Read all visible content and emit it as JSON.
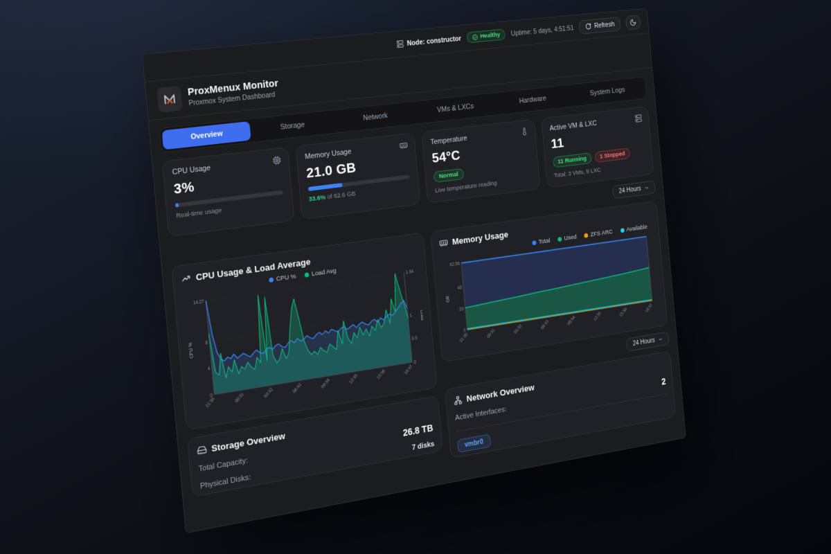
{
  "topbar": {
    "node_label": "Node: constructor",
    "health_label": "Healthy",
    "uptime": "Uptime: 5 days, 4:51:51",
    "refresh_label": "Refresh"
  },
  "header": {
    "title": "ProxMenux Monitor",
    "subtitle": "Proxmox System Dashboard"
  },
  "tabs": {
    "active_index": 0,
    "items": [
      {
        "label": "Overview"
      },
      {
        "label": "Storage"
      },
      {
        "label": "Network"
      },
      {
        "label": "VMs & LXCs"
      },
      {
        "label": "Hardware"
      },
      {
        "label": "System Logs"
      }
    ]
  },
  "stat_cards": {
    "cpu": {
      "label": "CPU Usage",
      "value": "3%",
      "percent": 3,
      "subtitle": "Real-time usage"
    },
    "memory": {
      "label": "Memory Usage",
      "value": "21.0 GB",
      "percent": 33.6,
      "subtitle_highlight": "33.6%",
      "subtitle_rest": " of 62.6 GB"
    },
    "temperature": {
      "label": "Temperature",
      "value": "54°C",
      "badge": "Normal",
      "subtitle": "Live temperature reading"
    },
    "vms": {
      "label": "Active VM & LXC",
      "value": "11",
      "running_badge": "11 Running",
      "stopped_badge": "1 Stopped",
      "subtitle": "Total: 3 VMs, 9 LXC"
    }
  },
  "timeframe": {
    "label": "24 Hours"
  },
  "chart_data": [
    {
      "type": "area",
      "title": "CPU Usage & Load Average",
      "x_ticks": [
        "21:30",
        "00:31",
        "03:32",
        "06:33",
        "09:34",
        "12:35",
        "15:36",
        "18:37"
      ],
      "left_axis": {
        "label": "CPU %",
        "max": 14.27,
        "ticks": [
          14.27,
          8,
          4,
          0
        ]
      },
      "right_axis": {
        "label": "Load",
        "max": 1.94,
        "ticks": [
          1.94,
          1,
          0.5,
          0
        ]
      },
      "legend_position": "center",
      "grid": true,
      "series": [
        {
          "name": "CPU %",
          "axis": "left",
          "color": "#3b82f6",
          "width": 1.4,
          "fill": "axis",
          "fill_color": "rgba(59,130,246,0.18)",
          "values": [
            14.3,
            9,
            6.2,
            5.1,
            4.8,
            5.3,
            5,
            5.6,
            4.9,
            5.2,
            5.5,
            5.1,
            4.8,
            5.3,
            5.7,
            5.2,
            5,
            5.5,
            5.8,
            5.4,
            5.9,
            6.1,
            5.6,
            5.4,
            6,
            6.3,
            5.9,
            6.5,
            6,
            6.2,
            6.7,
            6.3,
            6.1,
            6.6,
            6.9,
            6.5,
            7,
            6.6,
            7.1,
            6.8,
            6.5,
            7,
            7.2,
            6.7,
            7,
            7.3,
            6.8,
            7.2,
            7.5,
            7.1,
            6.9,
            7.4,
            7.6,
            7.1,
            7.7,
            7.3,
            7.8,
            8.1,
            7.8,
            8.3,
            8.8,
            9.4,
            9.9,
            8.6
          ]
        },
        {
          "name": "Load Avg",
          "axis": "right",
          "color": "#10b981",
          "width": 1.2,
          "fill": "axis",
          "fill_color": "rgba(16,185,129,0.3)",
          "values": [
            1.25,
            0.45,
            0.38,
            0.82,
            0.3,
            0.52,
            0.4,
            0.64,
            0.34,
            0.48,
            0.42,
            0.55,
            0.44,
            0.38,
            0.62,
            0.5,
            1.9,
            0.52,
            1.84,
            0.6,
            0.44,
            0.52,
            0.72,
            0.5,
            0.62,
            1.12,
            1.52,
            1.72,
            1.3,
            0.82,
            0.6,
            0.5,
            0.56,
            0.48,
            0.62,
            0.54,
            0.5,
            0.66,
            0.6,
            0.52,
            0.92,
            0.62,
            1.1,
            0.72,
            0.6,
            0.82,
            0.7,
            0.92,
            0.74,
            0.86,
            0.7,
            0.9,
            0.8,
            1.02,
            0.84,
            0.92,
            1.2,
            0.9,
            1.42,
            1.12,
            1.94,
            1.6,
            1.28,
            0.96
          ]
        }
      ]
    },
    {
      "type": "area",
      "title": "Memory Usage",
      "x_ticks": [
        "21:30",
        "00:31",
        "03:32",
        "06:33",
        "09:34",
        "12:35",
        "15:36",
        "18:37"
      ],
      "left_axis": {
        "label": "GB",
        "max": 62.56,
        "ticks": [
          62.56,
          40,
          20,
          0
        ]
      },
      "legend_position": "right",
      "grid": true,
      "series": [
        {
          "name": "Total",
          "axis": "left",
          "color": "#3b82f6",
          "width": 1.8,
          "fill": "Used",
          "fill_color": "rgba(36,48,84,0.88)",
          "values": [
            62.56,
            62.56,
            62.56,
            62.56,
            62.56,
            62.56,
            62.56,
            62.56,
            62.56
          ]
        },
        {
          "name": "Used",
          "axis": "left",
          "color": "#10b981",
          "width": 1.6,
          "fill": "axis",
          "fill_color": "rgba(16,185,129,0.35)",
          "values": [
            20.8,
            22.1,
            23.4,
            24.8,
            26.1,
            27.5,
            28.9,
            30.5,
            32.4
          ]
        },
        {
          "name": "ZFS ARC",
          "axis": "left",
          "color": "#f59e0b",
          "width": 1,
          "values": [
            0.5,
            0.5,
            0.5,
            0.5,
            0.5,
            0.5,
            0.5,
            0.5,
            0.5
          ]
        },
        {
          "name": "Available",
          "axis": "left",
          "color": "#22d3ee",
          "width": 1.3,
          "values": [
            1.2,
            1.2,
            1.2,
            1.2,
            1.2,
            1.2,
            1.2,
            1.2,
            1.2
          ]
        }
      ]
    }
  ],
  "storage": {
    "title": "Storage Overview",
    "rows": [
      {
        "label": "Total Capacity:",
        "value": "26.8 TB"
      },
      {
        "label": "Physical Disks:",
        "value": "7 disks"
      }
    ]
  },
  "network": {
    "title": "Network Overview",
    "rows": [
      {
        "label": "Active Interfaces:",
        "value": "2"
      }
    ],
    "interface_pill": "vmbr0"
  },
  "colors": {
    "accent_blue": "#3e6df0",
    "green": "#22c55e",
    "red": "#ef4444",
    "orange_logo": "#e2572b"
  }
}
